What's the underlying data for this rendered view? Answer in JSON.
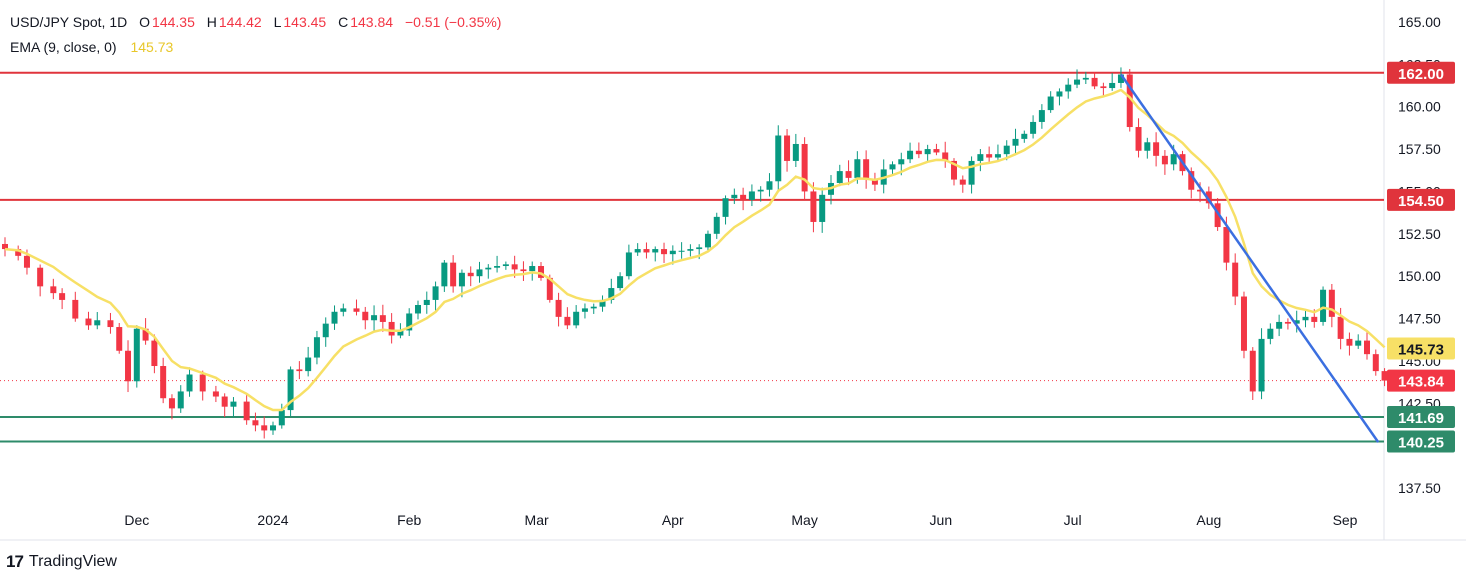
{
  "header": {
    "symbol": "USD/JPY Spot, 1D",
    "open_label": "O",
    "open": "144.35",
    "high_label": "H",
    "high": "144.42",
    "low_label": "L",
    "low": "143.45",
    "close_label": "C",
    "close": "143.84",
    "change": "−0.51 (−0.35%)",
    "ema_label": "EMA (9, close, 0)",
    "ema_value": "145.73"
  },
  "footer": {
    "brand": "TradingView",
    "logo": "17"
  },
  "colors": {
    "up": "#089981",
    "down": "#f23645",
    "ema": "#f7e066",
    "resistance": "#e0343c",
    "support": "#2e8b6a",
    "trendline": "#3b6fe0",
    "text": "#131722",
    "grid": "#f0f3fa"
  },
  "chart_data": {
    "type": "candlestick",
    "y_axis": {
      "min": 136.5,
      "max": 166.0,
      "ticks": [
        "137.50",
        "142.50",
        "145.00",
        "147.50",
        "150.00",
        "152.50",
        "155.00",
        "157.50",
        "160.00",
        "162.50",
        "165.00"
      ]
    },
    "x_axis": {
      "ticks": [
        {
          "label": "Dec",
          "day": 30
        },
        {
          "label": "2024",
          "day": 61
        },
        {
          "label": "Feb",
          "day": 92
        },
        {
          "label": "Mar",
          "day": 121
        },
        {
          "label": "Apr",
          "day": 152
        },
        {
          "label": "May",
          "day": 182
        },
        {
          "label": "Jun",
          "day": 213
        },
        {
          "label": "Jul",
          "day": 243
        },
        {
          "label": "Aug",
          "day": 274
        },
        {
          "label": "Sep",
          "day": 305
        }
      ],
      "day_range": [
        0,
        310
      ]
    },
    "horizontal_levels": [
      {
        "value": 162.0,
        "label": "162.00",
        "kind": "resistance"
      },
      {
        "value": 154.5,
        "label": "154.50",
        "kind": "resistance"
      },
      {
        "value": 141.69,
        "label": "141.69",
        "kind": "support"
      },
      {
        "value": 140.25,
        "label": "140.25",
        "kind": "support"
      }
    ],
    "trendline": {
      "from": {
        "day": 254,
        "value": 161.9
      },
      "to": {
        "day": 308,
        "value": 140.8
      }
    },
    "last_price": {
      "value": 143.84,
      "label": "143.84"
    },
    "ema_label_value": {
      "value": 145.73,
      "label": "145.73"
    },
    "close_path": [
      [
        0,
        151.6
      ],
      [
        3,
        151.2
      ],
      [
        5,
        150.5
      ],
      [
        8,
        149.4
      ],
      [
        11,
        149.0
      ],
      [
        13,
        148.6
      ],
      [
        16,
        147.5
      ],
      [
        19,
        147.1
      ],
      [
        21,
        147.4
      ],
      [
        24,
        147.0
      ],
      [
        26,
        145.6
      ],
      [
        28,
        143.8
      ],
      [
        30,
        146.9
      ],
      [
        32,
        146.2
      ],
      [
        34,
        144.7
      ],
      [
        36,
        142.8
      ],
      [
        38,
        142.2
      ],
      [
        40,
        143.2
      ],
      [
        42,
        144.2
      ],
      [
        45,
        143.2
      ],
      [
        48,
        142.9
      ],
      [
        50,
        142.3
      ],
      [
        52,
        142.6
      ],
      [
        55,
        141.5
      ],
      [
        57,
        141.2
      ],
      [
        59,
        140.9
      ],
      [
        61,
        141.2
      ],
      [
        63,
        142.1
      ],
      [
        65,
        144.5
      ],
      [
        67,
        144.4
      ],
      [
        69,
        145.2
      ],
      [
        71,
        146.4
      ],
      [
        73,
        147.2
      ],
      [
        75,
        147.9
      ],
      [
        77,
        148.1
      ],
      [
        80,
        147.9
      ],
      [
        82,
        147.4
      ],
      [
        84,
        147.7
      ],
      [
        86,
        147.3
      ],
      [
        88,
        146.5
      ],
      [
        90,
        146.8
      ],
      [
        92,
        147.8
      ],
      [
        94,
        148.3
      ],
      [
        96,
        148.6
      ],
      [
        98,
        149.4
      ],
      [
        100,
        150.8
      ],
      [
        102,
        149.4
      ],
      [
        104,
        150.2
      ],
      [
        106,
        150.0
      ],
      [
        108,
        150.4
      ],
      [
        110,
        150.5
      ],
      [
        112,
        150.6
      ],
      [
        114,
        150.7
      ],
      [
        116,
        150.4
      ],
      [
        118,
        150.3
      ],
      [
        120,
        150.6
      ],
      [
        122,
        149.9
      ],
      [
        124,
        148.6
      ],
      [
        126,
        147.6
      ],
      [
        128,
        147.1
      ],
      [
        130,
        147.9
      ],
      [
        132,
        148.1
      ],
      [
        134,
        148.2
      ],
      [
        136,
        148.6
      ],
      [
        138,
        149.3
      ],
      [
        140,
        150.0
      ],
      [
        142,
        151.4
      ],
      [
        144,
        151.6
      ],
      [
        146,
        151.4
      ],
      [
        148,
        151.6
      ],
      [
        150,
        151.3
      ],
      [
        152,
        151.5
      ],
      [
        154,
        151.5
      ],
      [
        156,
        151.6
      ],
      [
        158,
        151.7
      ],
      [
        160,
        152.5
      ],
      [
        162,
        153.5
      ],
      [
        164,
        154.6
      ],
      [
        166,
        154.8
      ],
      [
        168,
        154.5
      ],
      [
        170,
        155.0
      ],
      [
        172,
        155.1
      ],
      [
        174,
        155.6
      ],
      [
        176,
        158.3
      ],
      [
        178,
        156.8
      ],
      [
        180,
        157.8
      ],
      [
        182,
        155.0
      ],
      [
        184,
        153.2
      ],
      [
        186,
        154.8
      ],
      [
        188,
        155.5
      ],
      [
        190,
        156.2
      ],
      [
        192,
        155.8
      ],
      [
        194,
        156.9
      ],
      [
        196,
        155.7
      ],
      [
        198,
        155.4
      ],
      [
        200,
        156.3
      ],
      [
        202,
        156.6
      ],
      [
        204,
        156.9
      ],
      [
        206,
        157.4
      ],
      [
        208,
        157.2
      ],
      [
        210,
        157.5
      ],
      [
        212,
        157.3
      ],
      [
        214,
        156.8
      ],
      [
        216,
        155.7
      ],
      [
        218,
        155.4
      ],
      [
        220,
        156.8
      ],
      [
        222,
        157.2
      ],
      [
        224,
        157.0
      ],
      [
        226,
        157.2
      ],
      [
        228,
        157.7
      ],
      [
        230,
        158.1
      ],
      [
        232,
        158.4
      ],
      [
        234,
        159.1
      ],
      [
        236,
        159.8
      ],
      [
        238,
        160.6
      ],
      [
        240,
        160.9
      ],
      [
        242,
        161.3
      ],
      [
        244,
        161.6
      ],
      [
        246,
        161.7
      ],
      [
        248,
        161.2
      ],
      [
        250,
        161.1
      ],
      [
        252,
        161.4
      ],
      [
        254,
        161.9
      ],
      [
        256,
        158.8
      ],
      [
        258,
        157.4
      ],
      [
        260,
        157.9
      ],
      [
        262,
        157.1
      ],
      [
        264,
        156.6
      ],
      [
        266,
        157.2
      ],
      [
        268,
        156.2
      ],
      [
        270,
        155.1
      ],
      [
        272,
        155.0
      ],
      [
        274,
        154.3
      ],
      [
        276,
        152.9
      ],
      [
        278,
        150.8
      ],
      [
        280,
        148.8
      ],
      [
        282,
        145.6
      ],
      [
        284,
        143.2
      ],
      [
        286,
        146.3
      ],
      [
        288,
        146.9
      ],
      [
        290,
        147.3
      ],
      [
        292,
        147.2
      ],
      [
        294,
        147.4
      ],
      [
        296,
        147.6
      ],
      [
        298,
        147.3
      ],
      [
        300,
        149.2
      ],
      [
        302,
        147.6
      ],
      [
        304,
        146.3
      ],
      [
        306,
        145.9
      ],
      [
        308,
        146.2
      ],
      [
        310,
        145.4
      ],
      [
        312,
        144.4
      ],
      [
        314,
        143.84
      ]
    ]
  }
}
